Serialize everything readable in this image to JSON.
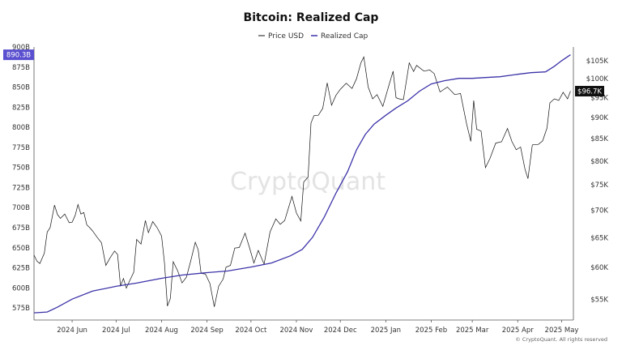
{
  "chart_data": {
    "type": "line",
    "title": "Bitcoin: Realized Cap",
    "watermark": "CryptoQuant",
    "footer": "© CryptoQuant. All rights reserved",
    "legend_placement": "top-center",
    "grid": false,
    "colors": {
      "price": "#111111",
      "realized_cap": "#3c33a8",
      "badge_left": "#5a4fcf",
      "badge_right": "#111111"
    },
    "x_range": [
      "2024-05-06",
      "2025-05-09"
    ],
    "x_ticks": [
      {
        "label": "2024 Jun",
        "date": "2024-06-01"
      },
      {
        "label": "2024 Jul",
        "date": "2024-07-01"
      },
      {
        "label": "2024 Aug",
        "date": "2024-08-01"
      },
      {
        "label": "2024 Sep",
        "date": "2024-09-01"
      },
      {
        "label": "2024 Oct",
        "date": "2024-10-01"
      },
      {
        "label": "2024 Nov",
        "date": "2024-11-01"
      },
      {
        "label": "2024 Dec",
        "date": "2024-12-01"
      },
      {
        "label": "2025 Jan",
        "date": "2025-01-01"
      },
      {
        "label": "2025 Feb",
        "date": "2025-02-01"
      },
      {
        "label": "2025 Mar",
        "date": "2025-03-01"
      },
      {
        "label": "2025 Apr",
        "date": "2025-04-01"
      },
      {
        "label": "2025 May",
        "date": "2025-05-01"
      }
    ],
    "left_axis": {
      "unit": "B",
      "range": [
        560,
        900
      ],
      "ticks": [
        "575B",
        "600B",
        "625B",
        "650B",
        "675B",
        "700B",
        "725B",
        "750B",
        "775B",
        "800B",
        "825B",
        "850B",
        "875B",
        "900B"
      ],
      "tick_values": [
        575,
        600,
        625,
        650,
        675,
        700,
        725,
        750,
        775,
        800,
        825,
        850,
        875,
        900
      ]
    },
    "right_axis": {
      "unit": "USD",
      "scale": "log",
      "range": [
        52000,
        109000
      ],
      "ticks": [
        "$55K",
        "$60K",
        "$65K",
        "$70K",
        "$75K",
        "$80K",
        "$85K",
        "$90K",
        "$95K",
        "$100K",
        "$105K"
      ],
      "tick_values": [
        55000,
        60000,
        65000,
        70000,
        75000,
        80000,
        85000,
        90000,
        95000,
        100000,
        105000
      ]
    },
    "last_values": {
      "realized_cap": "890.3B",
      "price": "$96.7K"
    },
    "series": [
      {
        "name": "Price USD",
        "axis": "right",
        "points": [
          [
            "2024-05-06",
            62000
          ],
          [
            "2024-05-08",
            61000
          ],
          [
            "2024-05-10",
            60600
          ],
          [
            "2024-05-13",
            62300
          ],
          [
            "2024-05-15",
            66000
          ],
          [
            "2024-05-17",
            66800
          ],
          [
            "2024-05-20",
            71000
          ],
          [
            "2024-05-22",
            69200
          ],
          [
            "2024-05-24",
            68500
          ],
          [
            "2024-05-27",
            69300
          ],
          [
            "2024-05-30",
            67700
          ],
          [
            "2024-06-01",
            67800
          ],
          [
            "2024-06-03",
            69000
          ],
          [
            "2024-06-05",
            71100
          ],
          [
            "2024-06-07",
            69300
          ],
          [
            "2024-06-09",
            69600
          ],
          [
            "2024-06-11",
            67300
          ],
          [
            "2024-06-13",
            66800
          ],
          [
            "2024-06-15",
            66200
          ],
          [
            "2024-06-18",
            65100
          ],
          [
            "2024-06-21",
            64100
          ],
          [
            "2024-06-24",
            60300
          ],
          [
            "2024-06-27",
            61600
          ],
          [
            "2024-06-30",
            62700
          ],
          [
            "2024-07-02",
            62100
          ],
          [
            "2024-07-04",
            57000
          ],
          [
            "2024-07-06",
            58200
          ],
          [
            "2024-07-08",
            56700
          ],
          [
            "2024-07-10",
            57700
          ],
          [
            "2024-07-13",
            59200
          ],
          [
            "2024-07-15",
            64700
          ],
          [
            "2024-07-18",
            63900
          ],
          [
            "2024-07-21",
            68100
          ],
          [
            "2024-07-23",
            65900
          ],
          [
            "2024-07-26",
            67900
          ],
          [
            "2024-07-29",
            66800
          ],
          [
            "2024-08-01",
            65300
          ],
          [
            "2024-08-03",
            60700
          ],
          [
            "2024-08-05",
            54000
          ],
          [
            "2024-08-07",
            55100
          ],
          [
            "2024-08-09",
            60900
          ],
          [
            "2024-08-12",
            59400
          ],
          [
            "2024-08-15",
            57500
          ],
          [
            "2024-08-18",
            58400
          ],
          [
            "2024-08-21",
            61100
          ],
          [
            "2024-08-24",
            64200
          ],
          [
            "2024-08-26",
            62900
          ],
          [
            "2024-08-28",
            59000
          ],
          [
            "2024-08-31",
            58900
          ],
          [
            "2024-09-03",
            57400
          ],
          [
            "2024-09-06",
            53900
          ],
          [
            "2024-09-09",
            57000
          ],
          [
            "2024-09-12",
            58100
          ],
          [
            "2024-09-14",
            60000
          ],
          [
            "2024-09-17",
            60300
          ],
          [
            "2024-09-20",
            63200
          ],
          [
            "2024-09-23",
            63300
          ],
          [
            "2024-09-27",
            65800
          ],
          [
            "2024-09-30",
            63300
          ],
          [
            "2024-10-03",
            60700
          ],
          [
            "2024-10-06",
            62800
          ],
          [
            "2024-10-10",
            60500
          ],
          [
            "2024-10-14",
            66000
          ],
          [
            "2024-10-18",
            68400
          ],
          [
            "2024-10-21",
            67400
          ],
          [
            "2024-10-24",
            68100
          ],
          [
            "2024-10-29",
            72700
          ],
          [
            "2024-11-01",
            69500
          ],
          [
            "2024-11-04",
            68000
          ],
          [
            "2024-11-06",
            75600
          ],
          [
            "2024-11-09",
            76600
          ],
          [
            "2024-11-11",
            88700
          ],
          [
            "2024-11-13",
            90500
          ],
          [
            "2024-11-16",
            90600
          ],
          [
            "2024-11-19",
            92300
          ],
          [
            "2024-11-22",
            98900
          ],
          [
            "2024-11-25",
            93100
          ],
          [
            "2024-11-28",
            95600
          ],
          [
            "2024-12-01",
            97200
          ],
          [
            "2024-12-05",
            98800
          ],
          [
            "2024-12-09",
            97400
          ],
          [
            "2024-12-12",
            100000
          ],
          [
            "2024-12-15",
            104400
          ],
          [
            "2024-12-17",
            106100
          ],
          [
            "2024-12-20",
            97800
          ],
          [
            "2024-12-23",
            94700
          ],
          [
            "2024-12-26",
            95800
          ],
          [
            "2024-12-30",
            92800
          ],
          [
            "2025-01-03",
            98100
          ],
          [
            "2025-01-06",
            102100
          ],
          [
            "2025-01-08",
            95000
          ],
          [
            "2025-01-10",
            94700
          ],
          [
            "2025-01-13",
            94500
          ],
          [
            "2025-01-17",
            104400
          ],
          [
            "2025-01-20",
            102000
          ],
          [
            "2025-01-22",
            103700
          ],
          [
            "2025-01-27",
            102100
          ],
          [
            "2025-01-31",
            102400
          ],
          [
            "2025-02-03",
            101400
          ],
          [
            "2025-02-07",
            96500
          ],
          [
            "2025-02-12",
            97800
          ],
          [
            "2025-02-17",
            95800
          ],
          [
            "2025-02-21",
            96100
          ],
          [
            "2025-02-25",
            88700
          ],
          [
            "2025-02-28",
            84400
          ],
          [
            "2025-03-02",
            94300
          ],
          [
            "2025-03-04",
            87200
          ],
          [
            "2025-03-07",
            86800
          ],
          [
            "2025-03-10",
            78600
          ],
          [
            "2025-03-13",
            80500
          ],
          [
            "2025-03-17",
            84000
          ],
          [
            "2025-03-21",
            84300
          ],
          [
            "2025-03-25",
            87400
          ],
          [
            "2025-03-28",
            84400
          ],
          [
            "2025-03-31",
            82500
          ],
          [
            "2025-04-03",
            83100
          ],
          [
            "2025-04-06",
            78200
          ],
          [
            "2025-04-08",
            76300
          ],
          [
            "2025-04-11",
            83600
          ],
          [
            "2025-04-15",
            83700
          ],
          [
            "2025-04-18",
            84500
          ],
          [
            "2025-04-21",
            87500
          ],
          [
            "2025-04-23",
            93700
          ],
          [
            "2025-04-26",
            94700
          ],
          [
            "2025-04-29",
            94300
          ],
          [
            "2025-05-02",
            96400
          ],
          [
            "2025-05-05",
            94700
          ],
          [
            "2025-05-07",
            96700
          ]
        ]
      },
      {
        "name": "Realized Cap",
        "axis": "left",
        "points": [
          [
            "2024-05-06",
            569
          ],
          [
            "2024-05-15",
            570
          ],
          [
            "2024-05-22",
            576
          ],
          [
            "2024-06-01",
            586
          ],
          [
            "2024-06-15",
            596
          ],
          [
            "2024-07-01",
            602
          ],
          [
            "2024-07-15",
            606
          ],
          [
            "2024-08-01",
            612
          ],
          [
            "2024-08-15",
            616
          ],
          [
            "2024-09-01",
            619
          ],
          [
            "2024-09-15",
            621
          ],
          [
            "2024-10-01",
            626
          ],
          [
            "2024-10-15",
            631
          ],
          [
            "2024-10-28",
            640
          ],
          [
            "2024-11-05",
            648
          ],
          [
            "2024-11-12",
            663
          ],
          [
            "2024-11-20",
            688
          ],
          [
            "2024-11-28",
            718
          ],
          [
            "2024-12-06",
            745
          ],
          [
            "2024-12-12",
            772
          ],
          [
            "2024-12-18",
            791
          ],
          [
            "2024-12-24",
            804
          ],
          [
            "2025-01-01",
            815
          ],
          [
            "2025-01-08",
            824
          ],
          [
            "2025-01-16",
            833
          ],
          [
            "2025-01-24",
            845
          ],
          [
            "2025-02-01",
            854
          ],
          [
            "2025-02-10",
            858
          ],
          [
            "2025-02-20",
            861
          ],
          [
            "2025-03-01",
            861
          ],
          [
            "2025-03-10",
            862
          ],
          [
            "2025-03-20",
            863
          ],
          [
            "2025-04-01",
            866
          ],
          [
            "2025-04-10",
            868
          ],
          [
            "2025-04-20",
            869
          ],
          [
            "2025-04-26",
            876
          ],
          [
            "2025-05-01",
            883
          ],
          [
            "2025-05-07",
            890.3
          ]
        ]
      }
    ]
  }
}
